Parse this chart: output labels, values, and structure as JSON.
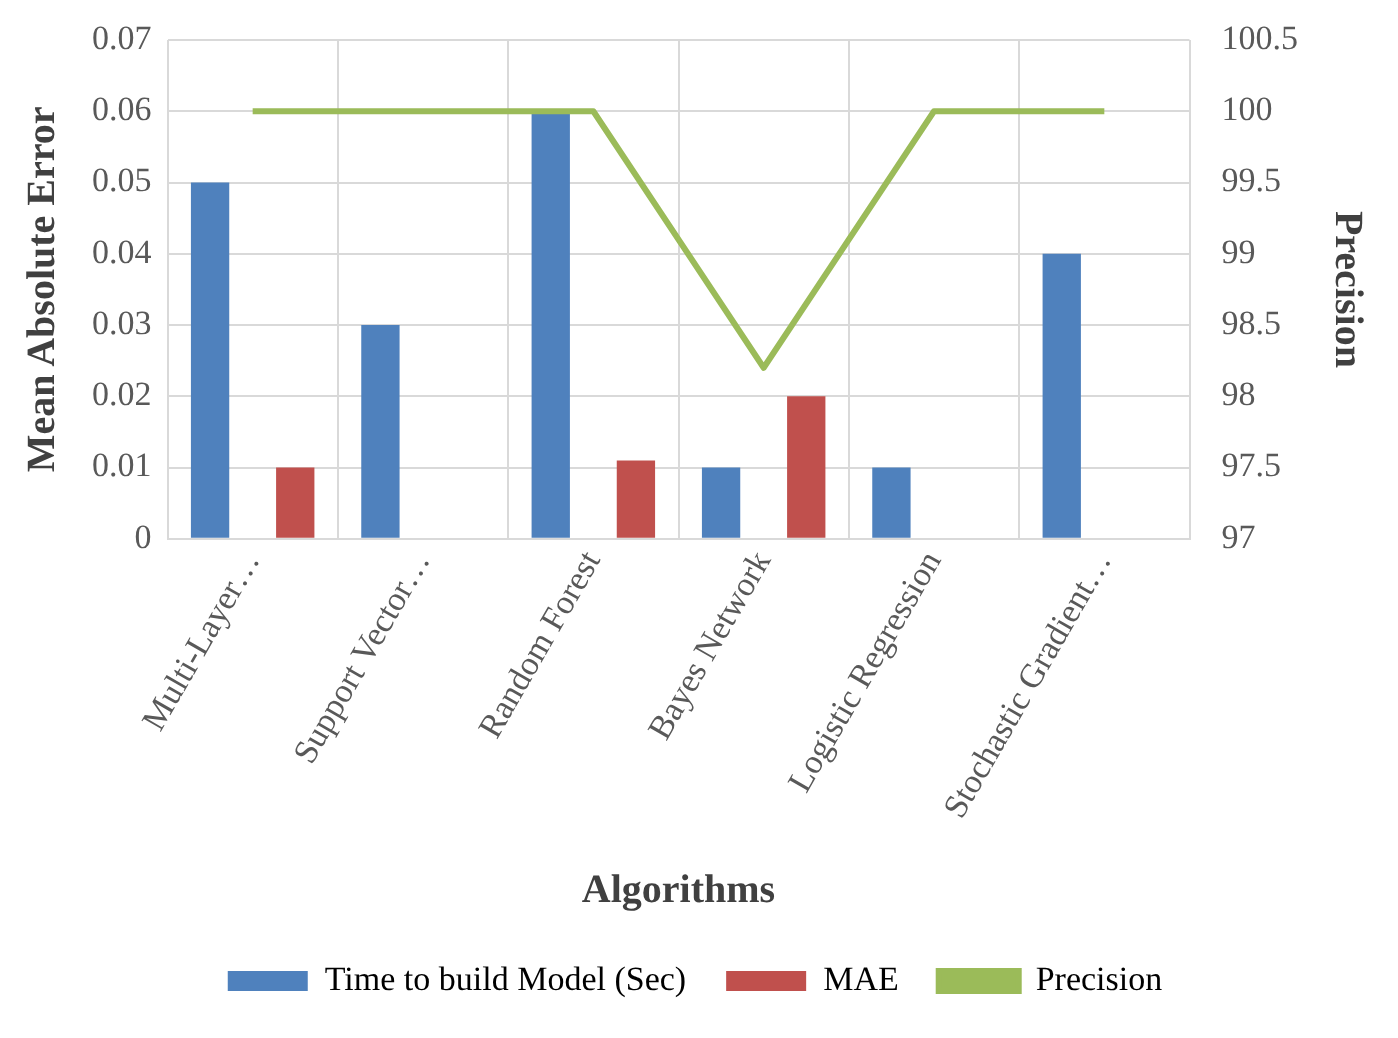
{
  "chart_data": {
    "type": "bar",
    "xlabel": "Algorithms",
    "ylabel": "Mean Absolute Error",
    "y2label": "Precision",
    "categories": [
      "Multi-Layer…",
      "Support Vector…",
      "Random Forest",
      "Bayes Network",
      "Logistic Regression",
      "Stochastic Gradient…"
    ],
    "series": [
      {
        "name": "Time to build Model (Sec)",
        "color": "#4f81bd",
        "values": [
          0.05,
          0.03,
          0.06,
          0.01,
          0.01,
          0.04
        ]
      },
      {
        "name": "MAE",
        "color": "#c0504d",
        "values": [
          0.01,
          null,
          0.011,
          0.02,
          null,
          null
        ]
      },
      {
        "name": "Precision",
        "type": "line",
        "axis": "y2",
        "color": "#9bbb59",
        "values": [
          100,
          100,
          100,
          98.2,
          100,
          100
        ]
      }
    ],
    "ylim": [
      0,
      0.07
    ],
    "yticks": [
      0,
      0.01,
      0.02,
      0.03,
      0.04,
      0.05,
      0.06,
      0.07
    ],
    "y2lim": [
      97,
      100.5
    ],
    "y2ticks": [
      97,
      97.5,
      98,
      98.5,
      99,
      99.5,
      100,
      100.5
    ],
    "grid": true,
    "legend": "bottom",
    "marker": "none",
    "line_style": "solid"
  }
}
